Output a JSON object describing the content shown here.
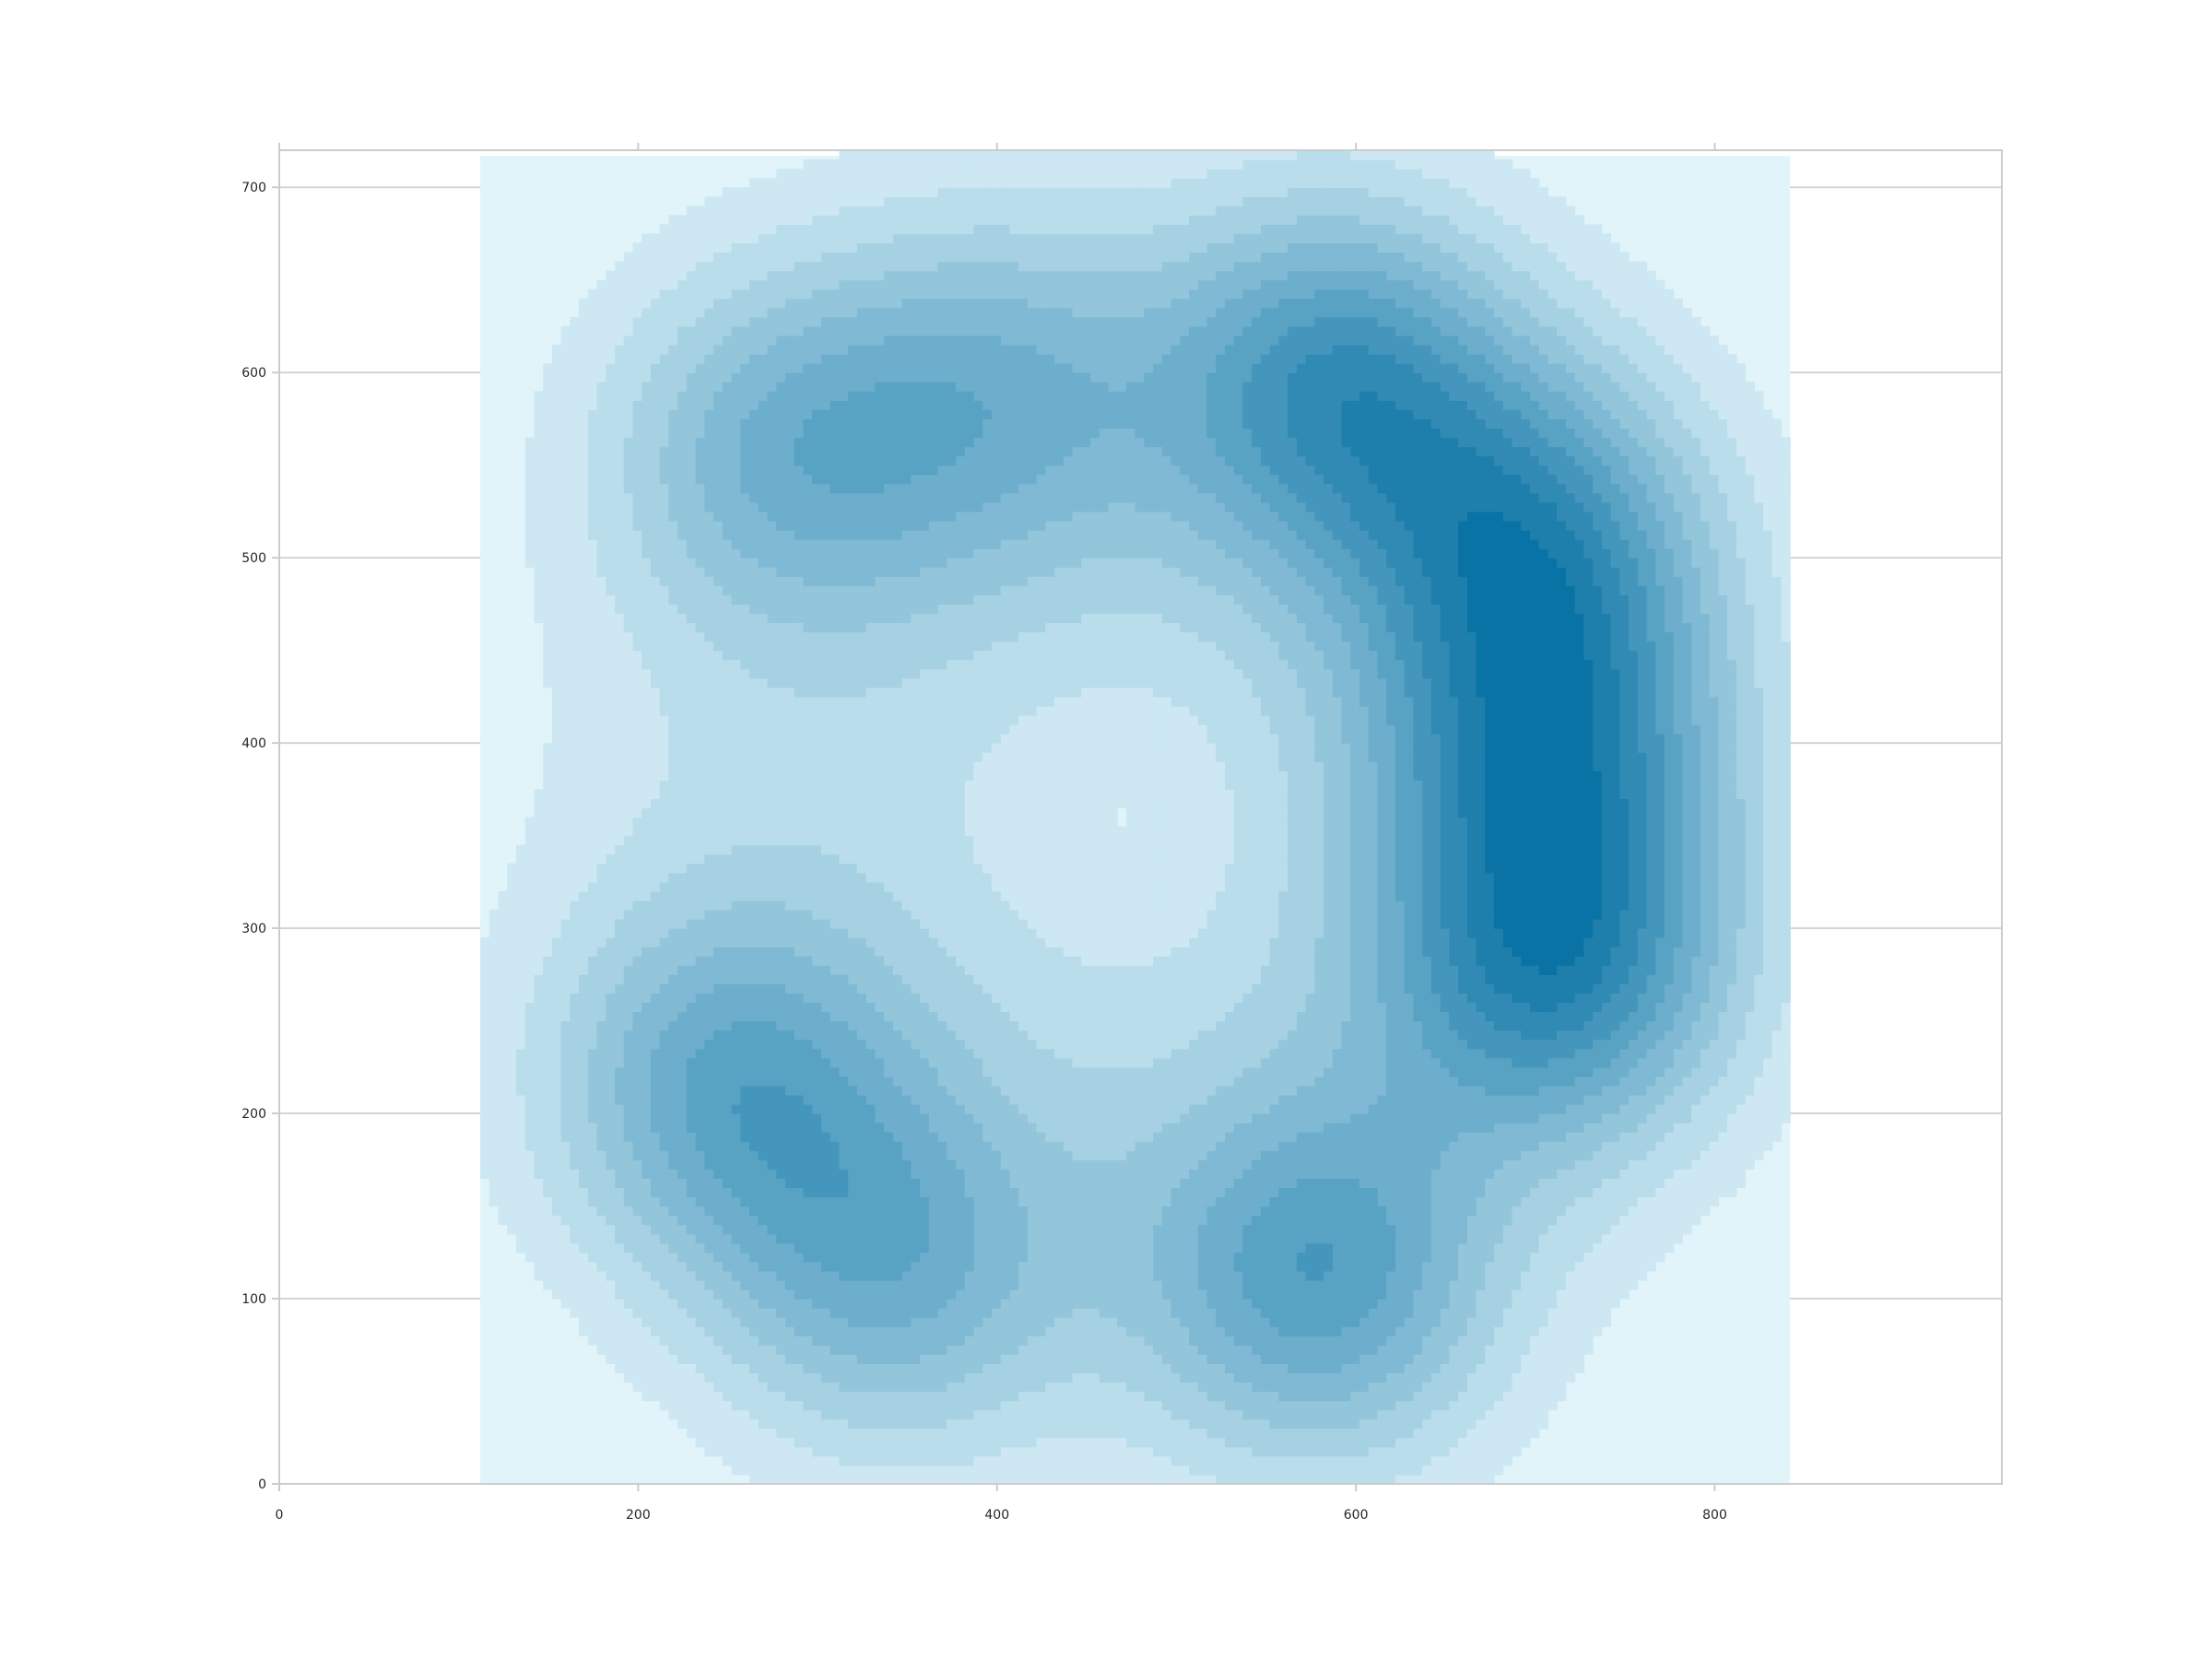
{
  "chart_data": {
    "type": "heatmap",
    "subtype": "kde-filled-contour",
    "title": "",
    "xlabel": "",
    "ylabel": "",
    "xlim": [
      0,
      960
    ],
    "ylim": [
      0,
      720
    ],
    "grid": "y-major",
    "xticks": [
      0,
      200,
      400,
      600,
      800
    ],
    "yticks": [
      0,
      100,
      200,
      300,
      400,
      500,
      600,
      700
    ],
    "xtick_labels": [
      "0",
      "200",
      "400",
      "600",
      "800"
    ],
    "ytick_labels": [
      "0",
      "100",
      "200",
      "300",
      "400",
      "500",
      "600",
      "700"
    ],
    "density_domain": {
      "x": [
        112,
        842
      ],
      "y": [
        0,
        717
      ]
    },
    "colors": {
      "low": "#e1f4fa",
      "high": "#0a73a5",
      "axis": "#cccccc",
      "grid": "#d4d4d4",
      "tick_text": "#262626"
    },
    "levels": 12,
    "density_peaks": [
      {
        "x": 248,
        "y": 213,
        "weight": 0.7
      },
      {
        "x": 340,
        "y": 115,
        "weight": 0.62
      },
      {
        "x": 580,
        "y": 110,
        "weight": 0.82
      },
      {
        "x": 712,
        "y": 280,
        "weight": 1.0
      },
      {
        "x": 710,
        "y": 400,
        "weight": 0.8
      },
      {
        "x": 700,
        "y": 510,
        "weight": 0.86
      },
      {
        "x": 590,
        "y": 595,
        "weight": 0.9
      },
      {
        "x": 400,
        "y": 590,
        "weight": 0.5
      },
      {
        "x": 278,
        "y": 560,
        "weight": 0.58
      }
    ]
  }
}
